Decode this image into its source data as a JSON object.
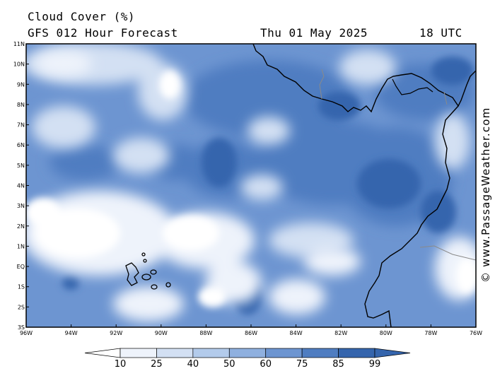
{
  "header": {
    "title": "Cloud Cover (%)",
    "subtitle": "GFS 012 Hour Forecast",
    "date": "Thu 01 May 2025",
    "time": "18 UTC"
  },
  "watermark": "© www.PassageWeather.com",
  "map": {
    "lat_labels": [
      "11N",
      "10N",
      "9N",
      "8N",
      "7N",
      "6N",
      "5N",
      "4N",
      "3N",
      "2N",
      "1N",
      "EQ",
      "1S",
      "2S",
      "3S"
    ],
    "lon_labels": [
      "96W",
      "94W",
      "92W",
      "90W",
      "88W",
      "86W",
      "84W",
      "82W",
      "80W",
      "78W",
      "76W"
    ],
    "lat_range": [
      -3,
      11
    ],
    "lon_range": [
      -96,
      -76
    ]
  },
  "colorbar": {
    "labels": [
      "10",
      "25",
      "40",
      "50",
      "60",
      "75",
      "85",
      "99"
    ],
    "colors": [
      "#ffffff",
      "#eef3fb",
      "#d3e0f3",
      "#b3cbeb",
      "#8fb0df",
      "#6d95d1",
      "#4f7dc1",
      "#3565ad"
    ]
  }
}
